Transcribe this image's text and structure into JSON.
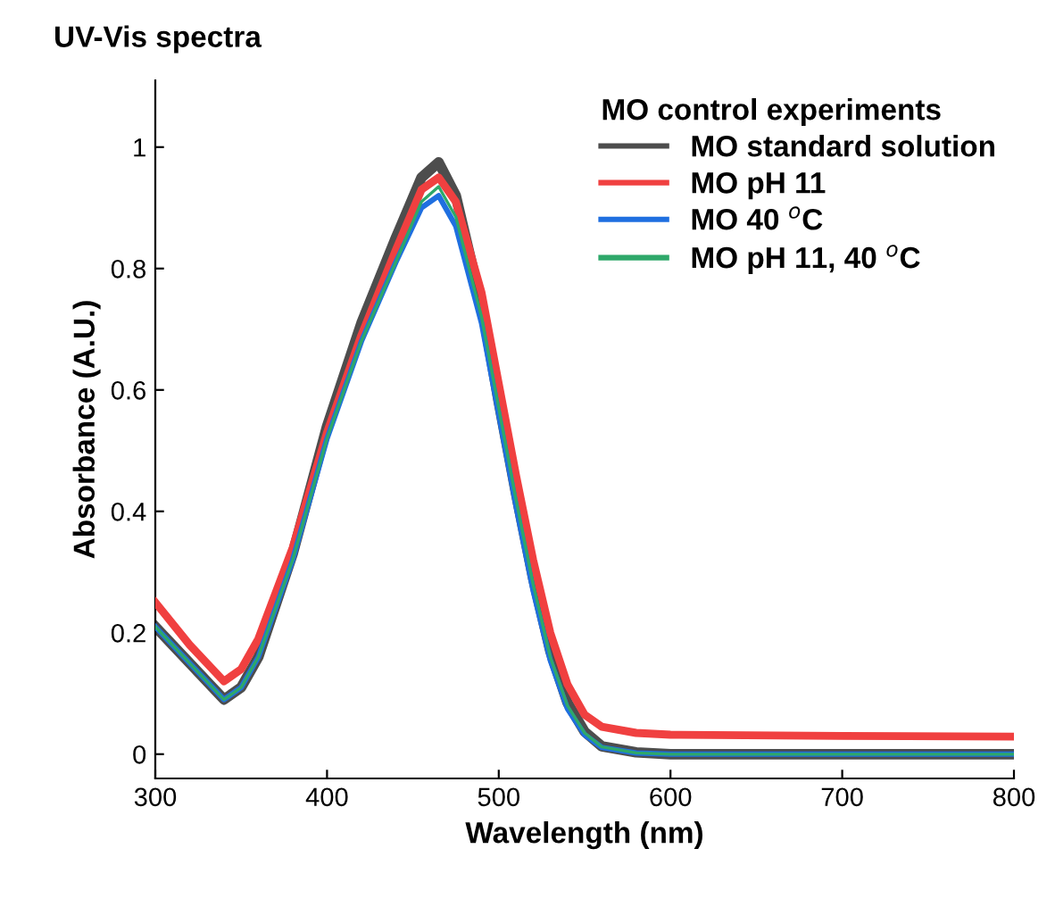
{
  "chart_data": {
    "type": "line",
    "title": "UV-Vis spectra",
    "xlabel": "Wavelength (nm)",
    "ylabel": "Absorbance (A.U.)",
    "legend_title": "MO control experiments",
    "legend": "top right",
    "grid": false,
    "marker": "none",
    "line_style": "solid",
    "x": [
      300,
      320,
      340,
      350,
      360,
      380,
      400,
      420,
      440,
      455,
      465,
      475,
      490,
      500,
      510,
      520,
      530,
      540,
      550,
      560,
      580,
      600,
      700,
      800
    ],
    "xlim": [
      300,
      800
    ],
    "ylim": [
      -0.04,
      1.11
    ],
    "xticks": [
      300,
      400,
      500,
      600,
      700,
      800
    ],
    "yticks": [
      0,
      0.2,
      0.4,
      0.6,
      0.8,
      1
    ],
    "series": [
      {
        "name": "MO standard solution",
        "color": "#4d4d4d",
        "values": [
          0.21,
          0.15,
          0.09,
          0.11,
          0.16,
          0.33,
          0.54,
          0.71,
          0.85,
          0.95,
          0.975,
          0.92,
          0.74,
          0.58,
          0.43,
          0.29,
          0.17,
          0.085,
          0.037,
          0.013,
          0.003,
          0,
          0,
          0
        ]
      },
      {
        "name": "MO pH 11",
        "color": "#f04040",
        "values": [
          0.25,
          0.18,
          0.12,
          0.14,
          0.19,
          0.34,
          0.53,
          0.69,
          0.83,
          0.93,
          0.95,
          0.91,
          0.76,
          0.61,
          0.46,
          0.32,
          0.2,
          0.115,
          0.065,
          0.045,
          0.035,
          0.032,
          0.03,
          0.029
        ]
      },
      {
        "name": "MO 40 $^{o}$C",
        "color": "#1f6fe0",
        "values": [
          0.21,
          0.15,
          0.09,
          0.11,
          0.16,
          0.32,
          0.52,
          0.68,
          0.81,
          0.9,
          0.92,
          0.87,
          0.71,
          0.56,
          0.41,
          0.27,
          0.155,
          0.075,
          0.032,
          0.011,
          0.002,
          0,
          0,
          0
        ]
      },
      {
        "name": "MO pH 11, 40 $^{o}$C",
        "color": "#2ea86a",
        "values": [
          0.21,
          0.15,
          0.09,
          0.11,
          0.16,
          0.32,
          0.52,
          0.68,
          0.81,
          0.91,
          0.935,
          0.885,
          0.72,
          0.57,
          0.42,
          0.28,
          0.16,
          0.08,
          0.035,
          0.012,
          0.002,
          0,
          0,
          0
        ]
      }
    ]
  }
}
